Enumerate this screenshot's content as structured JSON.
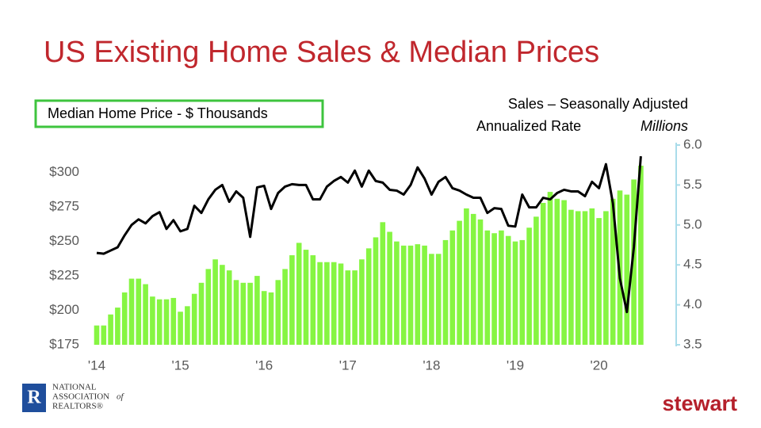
{
  "chart_data": {
    "type": "bar",
    "title": "US Existing Home Sales & Median Prices",
    "y2_label": [
      "Sales – Seasonally Adjusted",
      "Annualized Rate"
    ],
    "y2_unit": "Millions",
    "categories": [
      "'14",
      null,
      null,
      null,
      null,
      null,
      null,
      null,
      null,
      null,
      null,
      null,
      "'15",
      null,
      null,
      null,
      null,
      null,
      null,
      null,
      null,
      null,
      null,
      null,
      "'16",
      null,
      null,
      null,
      null,
      null,
      null,
      null,
      null,
      null,
      null,
      null,
      "'17",
      null,
      null,
      null,
      null,
      null,
      null,
      null,
      null,
      null,
      null,
      null,
      "'18",
      null,
      null,
      null,
      null,
      null,
      null,
      null,
      null,
      null,
      null,
      null,
      "'19",
      null,
      null,
      null,
      null,
      null,
      null,
      null,
      null,
      null,
      null,
      null,
      "'20",
      null,
      null,
      null,
      null,
      null,
      null
    ],
    "series": [
      {
        "name": "Median Home Price - $ Thousands",
        "type": "bar",
        "color": "#86f542",
        "values": [
          189,
          189,
          197,
          202,
          213,
          223,
          223,
          219,
          210,
          208,
          208,
          209,
          199,
          203,
          212,
          220,
          230,
          237,
          233,
          229,
          222,
          220,
          220,
          225,
          214,
          213,
          222,
          230,
          240,
          249,
          244,
          240,
          235,
          235,
          235,
          234,
          229,
          229,
          237,
          245,
          253,
          264,
          257,
          250,
          247,
          247,
          248,
          247,
          241,
          241,
          251,
          258,
          265,
          274,
          270,
          266,
          258,
          256,
          258,
          254,
          250,
          251,
          260,
          268,
          278,
          286,
          281,
          280,
          273,
          272,
          272,
          274,
          267,
          272,
          281,
          287,
          284,
          295,
          305
        ]
      },
      {
        "type": "line",
        "axis": "y2",
        "color": "#000000",
        "values": [
          4.65,
          4.64,
          4.68,
          4.72,
          4.87,
          5.0,
          5.07,
          5.02,
          5.11,
          5.16,
          4.95,
          5.06,
          4.92,
          4.95,
          5.24,
          5.15,
          5.32,
          5.44,
          5.5,
          5.29,
          5.42,
          5.34,
          4.85,
          5.47,
          5.49,
          5.2,
          5.4,
          5.48,
          5.51,
          5.5,
          5.5,
          5.32,
          5.32,
          5.48,
          5.55,
          5.6,
          5.53,
          5.68,
          5.48,
          5.68,
          5.55,
          5.53,
          5.44,
          5.43,
          5.38,
          5.5,
          5.72,
          5.58,
          5.38,
          5.54,
          5.6,
          5.46,
          5.43,
          5.38,
          5.34,
          5.34,
          5.15,
          5.21,
          5.2,
          4.99,
          4.98,
          5.38,
          5.22,
          5.22,
          5.34,
          5.32,
          5.4,
          5.44,
          5.42,
          5.42,
          5.36,
          5.54,
          5.46,
          5.76,
          5.27,
          4.33,
          3.91,
          4.72,
          5.86
        ]
      }
    ],
    "ylim": [
      175,
      320
    ],
    "yticks": [
      {
        "value": 175,
        "label": "$175"
      },
      {
        "value": 200,
        "label": "$200"
      },
      {
        "value": 225,
        "label": "$225"
      },
      {
        "value": 250,
        "label": "$250"
      },
      {
        "value": 275,
        "label": "$275"
      },
      {
        "value": 300,
        "label": "$300"
      }
    ],
    "y2lim": [
      3.5,
      6.0
    ],
    "y2ticks": [
      3.5,
      {
        "value": 4,
        "label": "4.0"
      },
      4.5,
      {
        "value": 5,
        "label": "5.0"
      },
      5.5,
      {
        "value": 6,
        "label": "6.0"
      }
    ],
    "grid": false
  },
  "footer": {
    "nar_logo": [
      "NATIONAL",
      "ASSOCIATION",
      "of",
      "REALTORS®"
    ],
    "stewart_logo": "stewart"
  }
}
